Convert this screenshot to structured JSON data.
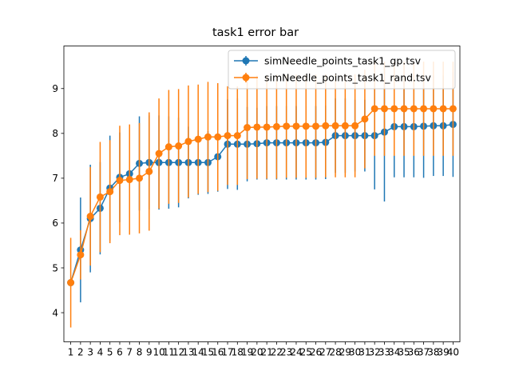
{
  "chart_data": {
    "type": "line",
    "title": "task1 error bar",
    "xlabel": "",
    "ylabel": "",
    "x": [
      1,
      2,
      3,
      4,
      5,
      6,
      7,
      8,
      9,
      10,
      11,
      12,
      13,
      14,
      15,
      16,
      17,
      18,
      19,
      20,
      21,
      22,
      23,
      24,
      25,
      26,
      27,
      28,
      29,
      30,
      31,
      32,
      33,
      34,
      35,
      36,
      37,
      38,
      39,
      40
    ],
    "xlim": [
      0.3,
      40.7
    ],
    "ylim": [
      3.35,
      9.95
    ],
    "yticks": [
      4,
      5,
      6,
      7,
      8,
      9
    ],
    "grid": false,
    "legend_position": "top-right",
    "series": [
      {
        "name": "simNeedle_points_task1_gp.tsv",
        "color": "#1f77b4",
        "marker": "circle",
        "y": [
          4.67,
          5.4,
          6.1,
          6.33,
          6.78,
          7.02,
          7.1,
          7.33,
          7.35,
          7.35,
          7.35,
          7.35,
          7.35,
          7.35,
          7.35,
          7.48,
          7.76,
          7.76,
          7.76,
          7.77,
          7.79,
          7.79,
          7.79,
          7.79,
          7.79,
          7.79,
          7.8,
          7.95,
          7.95,
          7.95,
          7.95,
          7.95,
          8.03,
          8.15,
          8.15,
          8.15,
          8.16,
          8.17,
          8.17,
          8.2
        ],
        "err": [
          0.0,
          1.17,
          1.2,
          1.03,
          1.17,
          1.0,
          0.98,
          1.05,
          1.05,
          1.05,
          1.03,
          1.0,
          0.8,
          0.72,
          0.7,
          0.78,
          1.0,
          1.02,
          0.83,
          0.8,
          0.82,
          0.82,
          0.82,
          0.82,
          0.82,
          0.82,
          0.82,
          0.83,
          0.83,
          0.8,
          0.8,
          1.2,
          1.55,
          1.13,
          1.13,
          1.13,
          1.15,
          1.12,
          1.12,
          1.17
        ]
      },
      {
        "name": "simNeedle_points_task1_rand.tsv",
        "color": "#ff7f0e",
        "marker": "circle",
        "y": [
          4.67,
          5.29,
          6.15,
          6.58,
          6.7,
          6.95,
          6.97,
          7.0,
          7.15,
          7.55,
          7.7,
          7.72,
          7.82,
          7.87,
          7.92,
          7.92,
          7.95,
          7.95,
          8.13,
          8.14,
          8.14,
          8.15,
          8.16,
          8.16,
          8.16,
          8.16,
          8.17,
          8.17,
          8.17,
          8.17,
          8.32,
          8.55,
          8.55,
          8.55,
          8.55,
          8.55,
          8.55,
          8.55,
          8.55,
          8.55
        ],
        "err": [
          1.0,
          0.55,
          1.1,
          1.23,
          1.15,
          1.22,
          1.23,
          1.23,
          1.32,
          1.23,
          1.27,
          1.27,
          1.25,
          1.22,
          1.23,
          1.2,
          1.1,
          1.1,
          1.15,
          1.15,
          1.15,
          1.16,
          1.15,
          1.15,
          1.15,
          1.15,
          1.15,
          1.15,
          1.15,
          1.15,
          1.1,
          1.05,
          1.05,
          1.05,
          1.05,
          1.05,
          1.05,
          1.05,
          1.05,
          1.05
        ]
      }
    ]
  }
}
